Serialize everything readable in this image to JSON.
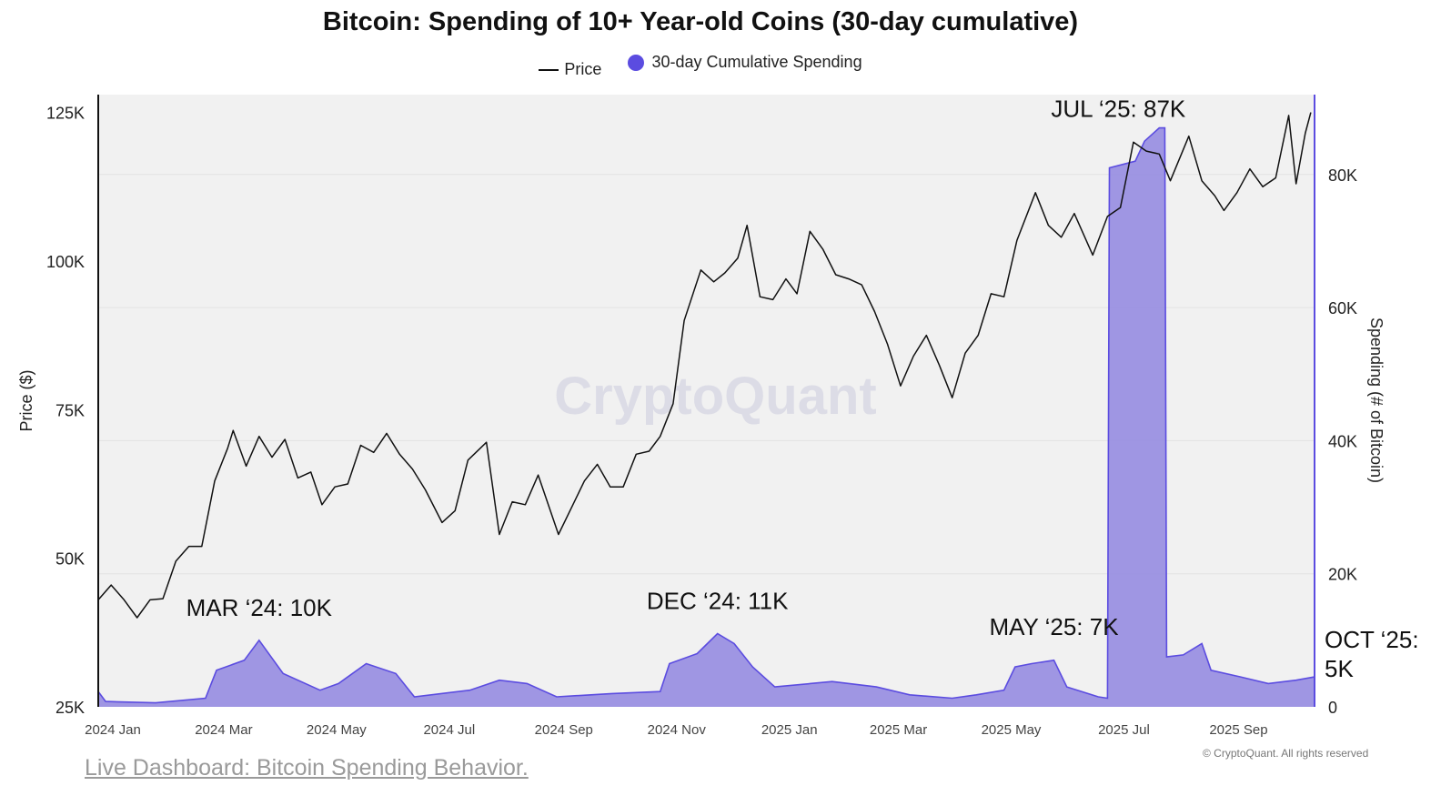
{
  "chart_data": {
    "type": "line",
    "title": "Bitcoin: Spending of 10+ Year-old Coins (30-day cumulative)",
    "legend": {
      "placement": "top-center",
      "items": [
        "Price",
        "30-day Cumulative Spending"
      ]
    },
    "watermark": "CryptoQuant",
    "x_axis": {
      "range": [
        "2024-01-01",
        "2025-10-20"
      ],
      "ticks": [
        {
          "date": "2024-01-01",
          "label": "2024 Jan"
        },
        {
          "date": "2024-03-01",
          "label": "2024 Mar"
        },
        {
          "date": "2024-05-01",
          "label": "2024 May"
        },
        {
          "date": "2024-07-01",
          "label": "2024 Jul"
        },
        {
          "date": "2024-09-01",
          "label": "2024 Sep"
        },
        {
          "date": "2024-11-01",
          "label": "2024 Nov"
        },
        {
          "date": "2025-01-01",
          "label": "2025 Jan"
        },
        {
          "date": "2025-03-01",
          "label": "2025 Mar"
        },
        {
          "date": "2025-05-01",
          "label": "2025 May"
        },
        {
          "date": "2025-07-01",
          "label": "2025 Jul"
        },
        {
          "date": "2025-09-01",
          "label": "2025 Sep"
        }
      ]
    },
    "y_left": {
      "label": "Price ($)",
      "range": [
        25000,
        128000
      ],
      "ticks": [
        {
          "value": 25000,
          "label": "25K"
        },
        {
          "value": 50000,
          "label": "50K"
        },
        {
          "value": 75000,
          "label": "75K"
        },
        {
          "value": 100000,
          "label": "100K"
        },
        {
          "value": 125000,
          "label": "125K"
        }
      ]
    },
    "y_right": {
      "label": "Spending (# of Bitcoin)",
      "range": [
        0,
        92000
      ],
      "ticks": [
        {
          "value": 0,
          "label": "0"
        },
        {
          "value": 20000,
          "label": "20K"
        },
        {
          "value": 40000,
          "label": "40K"
        },
        {
          "value": 60000,
          "label": "60K"
        },
        {
          "value": 80000,
          "label": "80K"
        }
      ]
    },
    "grid": true,
    "series": [
      {
        "name": "Price",
        "axis": "left",
        "color": "#111111",
        "points": [
          [
            "2024-01-01",
            43000
          ],
          [
            "2024-01-08",
            45500
          ],
          [
            "2024-01-15",
            43000
          ],
          [
            "2024-01-22",
            40000
          ],
          [
            "2024-01-29",
            43000
          ],
          [
            "2024-02-05",
            43200
          ],
          [
            "2024-02-12",
            49500
          ],
          [
            "2024-02-19",
            52000
          ],
          [
            "2024-02-26",
            52000
          ],
          [
            "2024-03-04",
            63000
          ],
          [
            "2024-03-11",
            68500
          ],
          [
            "2024-03-14",
            71500
          ],
          [
            "2024-03-21",
            65500
          ],
          [
            "2024-03-28",
            70500
          ],
          [
            "2024-04-04",
            67000
          ],
          [
            "2024-04-11",
            70000
          ],
          [
            "2024-04-18",
            63500
          ],
          [
            "2024-04-25",
            64500
          ],
          [
            "2024-05-01",
            59000
          ],
          [
            "2024-05-08",
            62000
          ],
          [
            "2024-05-15",
            62500
          ],
          [
            "2024-05-22",
            69000
          ],
          [
            "2024-05-29",
            67800
          ],
          [
            "2024-06-05",
            71000
          ],
          [
            "2024-06-12",
            67500
          ],
          [
            "2024-06-19",
            65000
          ],
          [
            "2024-06-26",
            61500
          ],
          [
            "2024-07-05",
            56000
          ],
          [
            "2024-07-12",
            58000
          ],
          [
            "2024-07-19",
            66500
          ],
          [
            "2024-07-29",
            69500
          ],
          [
            "2024-08-05",
            54000
          ],
          [
            "2024-08-12",
            59500
          ],
          [
            "2024-08-19",
            59000
          ],
          [
            "2024-08-26",
            64000
          ],
          [
            "2024-09-06",
            54000
          ],
          [
            "2024-09-13",
            58500
          ],
          [
            "2024-09-20",
            63000
          ],
          [
            "2024-09-27",
            65800
          ],
          [
            "2024-10-04",
            62000
          ],
          [
            "2024-10-11",
            62000
          ],
          [
            "2024-10-18",
            67500
          ],
          [
            "2024-10-25",
            68000
          ],
          [
            "2024-10-31",
            70500
          ],
          [
            "2024-11-07",
            76000
          ],
          [
            "2024-11-13",
            90000
          ],
          [
            "2024-11-22",
            98500
          ],
          [
            "2024-11-29",
            96500
          ],
          [
            "2024-12-05",
            98000
          ],
          [
            "2024-12-12",
            100500
          ],
          [
            "2024-12-17",
            106000
          ],
          [
            "2024-12-24",
            94000
          ],
          [
            "2024-12-31",
            93500
          ],
          [
            "2025-01-07",
            97000
          ],
          [
            "2025-01-13",
            94500
          ],
          [
            "2025-01-20",
            105000
          ],
          [
            "2025-01-27",
            102000
          ],
          [
            "2025-02-03",
            97700
          ],
          [
            "2025-02-10",
            97000
          ],
          [
            "2025-02-17",
            96000
          ],
          [
            "2025-02-24",
            91500
          ],
          [
            "2025-03-03",
            86000
          ],
          [
            "2025-03-10",
            79000
          ],
          [
            "2025-03-17",
            84000
          ],
          [
            "2025-03-24",
            87500
          ],
          [
            "2025-03-31",
            82500
          ],
          [
            "2025-04-07",
            77000
          ],
          [
            "2025-04-14",
            84500
          ],
          [
            "2025-04-21",
            87500
          ],
          [
            "2025-04-28",
            94500
          ],
          [
            "2025-05-05",
            94000
          ],
          [
            "2025-05-12",
            103500
          ],
          [
            "2025-05-22",
            111500
          ],
          [
            "2025-05-29",
            106000
          ],
          [
            "2025-06-05",
            104000
          ],
          [
            "2025-06-12",
            108000
          ],
          [
            "2025-06-22",
            101000
          ],
          [
            "2025-06-30",
            107500
          ],
          [
            "2025-07-07",
            109000
          ],
          [
            "2025-07-14",
            120000
          ],
          [
            "2025-07-21",
            118500
          ],
          [
            "2025-07-28",
            118000
          ],
          [
            "2025-08-03",
            113500
          ],
          [
            "2025-08-13",
            121000
          ],
          [
            "2025-08-20",
            113500
          ],
          [
            "2025-08-27",
            111000
          ],
          [
            "2025-09-01",
            108500
          ],
          [
            "2025-09-08",
            111500
          ],
          [
            "2025-09-15",
            115500
          ],
          [
            "2025-09-22",
            112500
          ],
          [
            "2025-09-29",
            114000
          ],
          [
            "2025-10-06",
            124500
          ],
          [
            "2025-10-10",
            113000
          ],
          [
            "2025-10-15",
            121500
          ],
          [
            "2025-10-18",
            125000
          ]
        ]
      },
      {
        "name": "30-day Cumulative Spending",
        "axis": "right",
        "color": "#5b4ce0",
        "fill": "#9a90e2",
        "points": [
          [
            "2024-01-01",
            2300
          ],
          [
            "2024-01-05",
            800
          ],
          [
            "2024-02-01",
            600
          ],
          [
            "2024-02-28",
            1300
          ],
          [
            "2024-03-05",
            5500
          ],
          [
            "2024-03-20",
            7000
          ],
          [
            "2024-03-28",
            10000
          ],
          [
            "2024-04-10",
            5000
          ],
          [
            "2024-04-30",
            2500
          ],
          [
            "2024-05-10",
            3500
          ],
          [
            "2024-05-25",
            6500
          ],
          [
            "2024-06-10",
            5000
          ],
          [
            "2024-06-20",
            1500
          ],
          [
            "2024-07-20",
            2500
          ],
          [
            "2024-08-05",
            4000
          ],
          [
            "2024-08-20",
            3500
          ],
          [
            "2024-09-05",
            1500
          ],
          [
            "2024-10-05",
            2000
          ],
          [
            "2024-10-31",
            2300
          ],
          [
            "2024-11-05",
            6500
          ],
          [
            "2024-11-20",
            8000
          ],
          [
            "2024-12-01",
            11000
          ],
          [
            "2024-12-10",
            9500
          ],
          [
            "2024-12-20",
            6000
          ],
          [
            "2025-01-01",
            3000
          ],
          [
            "2025-02-01",
            3800
          ],
          [
            "2025-02-25",
            3000
          ],
          [
            "2025-03-15",
            1800
          ],
          [
            "2025-04-07",
            1300
          ],
          [
            "2025-04-20",
            1800
          ],
          [
            "2025-05-05",
            2500
          ],
          [
            "2025-05-11",
            6000
          ],
          [
            "2025-05-20",
            6500
          ],
          [
            "2025-06-01",
            7000
          ],
          [
            "2025-06-08",
            3000
          ],
          [
            "2025-06-25",
            1500
          ],
          [
            "2025-06-30",
            1300
          ],
          [
            "2025-07-01",
            81000
          ],
          [
            "2025-07-15",
            82000
          ],
          [
            "2025-07-20",
            85000
          ],
          [
            "2025-07-28",
            87000
          ],
          [
            "2025-07-31",
            87000
          ],
          [
            "2025-08-01",
            7500
          ],
          [
            "2025-08-10",
            7800
          ],
          [
            "2025-08-20",
            9500
          ],
          [
            "2025-08-25",
            5500
          ],
          [
            "2025-09-10",
            4500
          ],
          [
            "2025-09-25",
            3500
          ],
          [
            "2025-10-10",
            4000
          ],
          [
            "2025-10-20",
            4500
          ]
        ]
      }
    ],
    "annotations": [
      {
        "text": "MAR ‘24: 10K"
      },
      {
        "text": "DEC ‘24: 11K"
      },
      {
        "text": "MAY ‘25: 7K"
      },
      {
        "text": "JUL ‘25: 87K"
      },
      {
        "text": "OCT ‘25:"
      },
      {
        "text": "5K"
      }
    ]
  },
  "footer": {
    "link_text": "Live Dashboard: Bitcoin Spending Behavior.",
    "copyright": "© CryptoQuant. All rights reserved"
  }
}
